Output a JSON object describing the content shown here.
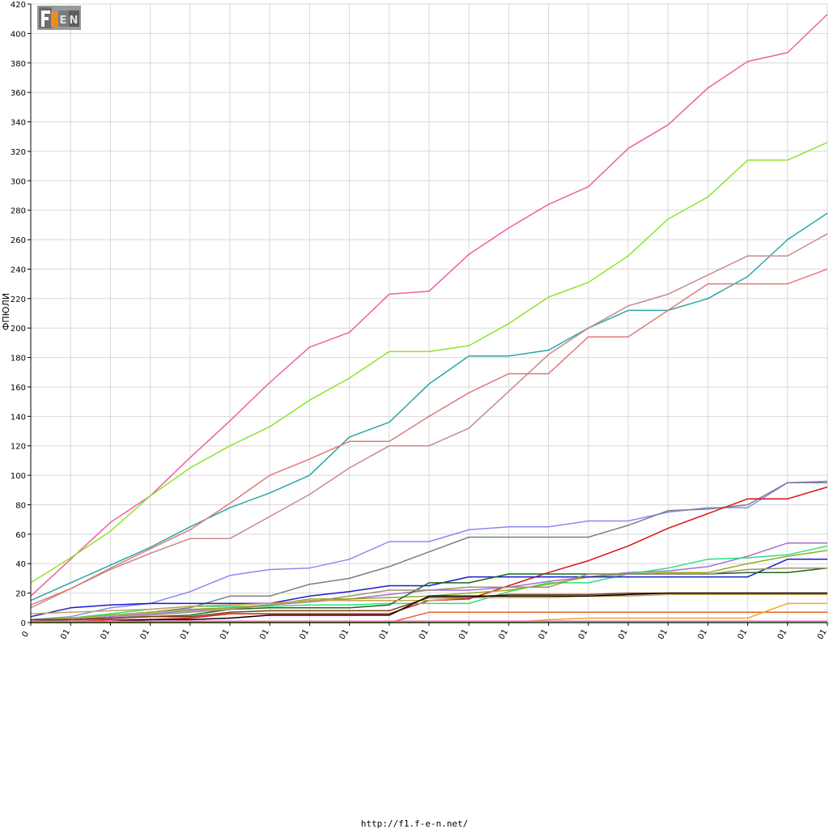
{
  "logo": {
    "text": "F1EN",
    "name": "f1-e-n-logo"
  },
  "footer": {
    "url": "http://f1.f-e-n.net/"
  },
  "colors": {
    "background": "#ffffff",
    "grid": "#d8d8d8",
    "axis": "#000000"
  },
  "chart_data": {
    "type": "line",
    "title": "",
    "xlabel": "",
    "ylabel": "ФПЮЛИ",
    "ylim": [
      0,
      420
    ],
    "yticks": [
      0,
      20,
      40,
      60,
      80,
      100,
      120,
      140,
      160,
      180,
      200,
      220,
      240,
      260,
      280,
      300,
      320,
      340,
      360,
      380,
      400,
      420
    ],
    "grid": true,
    "legend": "none",
    "x": [
      0,
      1,
      2,
      3,
      4,
      5,
      6,
      7,
      8,
      9,
      10,
      11,
      12,
      13,
      14,
      15,
      16,
      17,
      18,
      19,
      20
    ],
    "xtick_labels": [
      "0",
      "01",
      "01",
      "01",
      "01",
      "01",
      "01",
      "01",
      "01",
      "01",
      "01",
      "01",
      "01",
      "01",
      "01",
      "01",
      "01",
      "01",
      "01",
      "01",
      "01"
    ],
    "series": [
      {
        "color": "#ee5fa7",
        "values": [
          18,
          43,
          68,
          86,
          112,
          137,
          163,
          187,
          197,
          223,
          225,
          250,
          268,
          284,
          296,
          322,
          338,
          363,
          381,
          387,
          413
        ]
      },
      {
        "color": "#8ce62b",
        "values": [
          27,
          44,
          62,
          86,
          105,
          120,
          133,
          151,
          166,
          184,
          184,
          188,
          203,
          221,
          231,
          249,
          274,
          289,
          314,
          314,
          326
        ]
      },
      {
        "color": "#2aa6a6",
        "values": [
          15,
          27,
          39,
          51,
          65,
          78,
          88,
          100,
          126,
          136,
          162,
          181,
          181,
          185,
          200,
          212,
          212,
          220,
          235,
          260,
          278
        ]
      },
      {
        "color": "#c98b8b",
        "values": [
          10,
          23,
          36,
          47,
          57,
          57,
          72,
          87,
          105,
          120,
          120,
          132,
          157,
          182,
          200,
          215,
          223,
          236,
          249,
          249,
          264
        ]
      },
      {
        "color": "#e07a7a",
        "values": [
          12,
          23,
          37,
          50,
          63,
          81,
          100,
          111,
          123,
          123,
          140,
          156,
          169,
          169,
          194,
          194,
          212,
          230,
          230,
          230,
          240
        ]
      },
      {
        "color": "#8a8af0",
        "values": [
          2,
          4,
          10,
          13,
          21,
          32,
          36,
          37,
          43,
          55,
          55,
          63,
          65,
          65,
          69,
          69,
          75,
          78,
          78,
          95,
          96
        ]
      },
      {
        "color": "#7a8088",
        "values": [
          1,
          3,
          5,
          7,
          10,
          18,
          18,
          26,
          30,
          38,
          48,
          58,
          58,
          58,
          58,
          66,
          76,
          77,
          80,
          95,
          95
        ]
      },
      {
        "color": "#dd1111",
        "values": [
          1,
          1,
          2,
          2,
          3,
          6,
          6,
          6,
          6,
          6,
          15,
          16,
          25,
          34,
          42,
          52,
          64,
          74,
          84,
          84,
          92
        ]
      },
      {
        "color": "#a070d0",
        "values": [
          2,
          2,
          4,
          6,
          8,
          10,
          12,
          14,
          16,
          19,
          22,
          22,
          24,
          28,
          31,
          34,
          35,
          38,
          45,
          54,
          54
        ]
      },
      {
        "color": "#2ee080",
        "values": [
          2,
          3,
          6,
          9,
          11,
          11,
          11,
          12,
          12,
          13,
          13,
          13,
          21,
          27,
          27,
          33,
          37,
          43,
          44,
          46,
          52
        ]
      },
      {
        "color": "#99aa22",
        "values": [
          2,
          3,
          5,
          7,
          9,
          10,
          12,
          16,
          16,
          17,
          18,
          20,
          22,
          26,
          31,
          33,
          34,
          34,
          40,
          45,
          49
        ]
      },
      {
        "color": "#1a1ad0",
        "values": [
          4,
          10,
          12,
          13,
          13,
          13,
          13,
          18,
          21,
          25,
          25,
          31,
          31,
          31,
          31,
          31,
          31,
          31,
          31,
          43,
          43
        ]
      },
      {
        "color": "#1a6a1a",
        "values": [
          1,
          2,
          3,
          4,
          5,
          9,
          10,
          10,
          10,
          12,
          27,
          27,
          33,
          33,
          33,
          33,
          33,
          33,
          34,
          34,
          37
        ]
      },
      {
        "color": "#a09070",
        "values": [
          1,
          1,
          3,
          5,
          7,
          9,
          12,
          14,
          18,
          22,
          22,
          24,
          24,
          24,
          33,
          33,
          33,
          33,
          36,
          37,
          37
        ]
      },
      {
        "color": "#c8a050",
        "values": [
          6,
          7,
          8,
          9,
          11,
          12,
          13,
          15,
          15,
          15,
          15,
          17,
          17,
          17,
          18,
          18,
          19,
          19,
          19,
          19,
          19
        ]
      },
      {
        "color": "#7a4010",
        "values": [
          2,
          2,
          3,
          4,
          4,
          7,
          8,
          8,
          8,
          8,
          17,
          17,
          19,
          19,
          19,
          20,
          20,
          20,
          20,
          20,
          20
        ]
      },
      {
        "color": "#000000",
        "values": [
          1,
          1,
          1,
          2,
          2,
          3,
          5,
          5,
          5,
          5,
          18,
          18,
          18,
          18,
          18,
          19,
          20,
          20,
          20,
          20,
          20
        ]
      },
      {
        "color": "#e0662a",
        "values": [
          0,
          0,
          0,
          0,
          0,
          0,
          0,
          0,
          0,
          0,
          7,
          7,
          7,
          7,
          7,
          7,
          7,
          7,
          7,
          7,
          7
        ]
      },
      {
        "color": "#f5a623",
        "values": [
          0,
          0,
          0,
          0,
          0,
          0,
          0,
          0,
          0,
          0,
          0,
          0,
          0,
          2,
          3,
          3,
          3,
          3,
          3,
          13,
          13
        ]
      },
      {
        "color": "#ff66cc",
        "values": [
          1,
          1,
          1,
          1,
          1,
          1,
          1,
          1,
          1,
          1,
          1,
          1,
          1,
          1,
          1,
          1,
          1,
          1,
          1,
          1,
          1
        ]
      },
      {
        "color": "#3a9a3a",
        "values": [
          0,
          0,
          0,
          0,
          0,
          0,
          0,
          0,
          0,
          0,
          0,
          0,
          0,
          0,
          0,
          0,
          0,
          0,
          0,
          0,
          0
        ]
      }
    ]
  }
}
